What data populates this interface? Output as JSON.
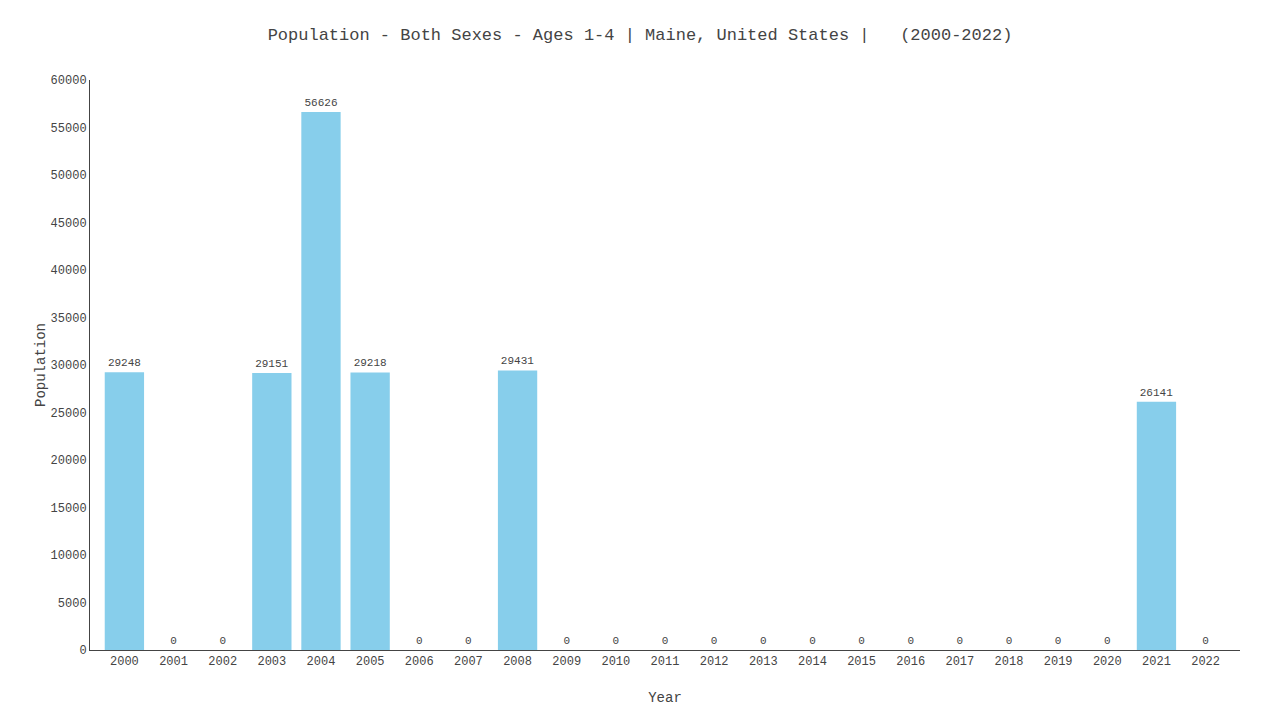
{
  "chart_data": {
    "type": "bar",
    "title": "Population - Both Sexes - Ages 1-4 | Maine, United States |   (2000-2022)",
    "x_label": "Year",
    "y_label": "Population",
    "categories": [
      "2000",
      "2001",
      "2002",
      "2003",
      "2004",
      "2005",
      "2006",
      "2007",
      "2008",
      "2009",
      "2010",
      "2011",
      "2012",
      "2013",
      "2014",
      "2015",
      "2016",
      "2017",
      "2018",
      "2019",
      "2020",
      "2021",
      "2022"
    ],
    "values": [
      29248,
      0,
      0,
      29151,
      56626,
      29218,
      0,
      0,
      29431,
      0,
      0,
      0,
      0,
      0,
      0,
      0,
      0,
      0,
      0,
      0,
      0,
      26141,
      0
    ],
    "color": "#87CEEB",
    "ylim": [
      0,
      60000
    ],
    "yticks": [
      0,
      5000,
      10000,
      15000,
      20000,
      25000,
      30000,
      35000,
      40000,
      45000,
      50000,
      55000,
      60000
    ],
    "grid": false,
    "data_labels": true
  }
}
